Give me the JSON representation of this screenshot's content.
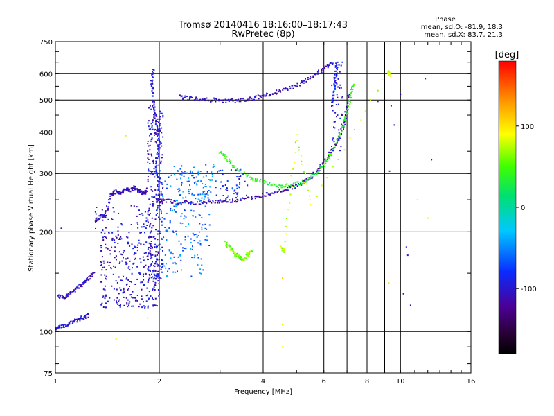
{
  "chart_data": {
    "type": "scatter",
    "title": "Tromsø 20140416 18:16:00–18:17:43",
    "subtitle": "RwPretec (8p)",
    "xlabel": "Frequency [MHz]",
    "ylabel": "Stationary phase Virtual Height [km]",
    "x_scale": "log",
    "y_scale": "log",
    "xlim": [
      1,
      16
    ],
    "ylim": [
      75,
      750
    ],
    "x_ticks": [
      1,
      2,
      4,
      6,
      8,
      10,
      16
    ],
    "x_gridlines": [
      2,
      4,
      6,
      7,
      8,
      9,
      10
    ],
    "y_ticks": [
      75,
      100,
      200,
      300,
      400,
      500,
      600,
      750
    ],
    "y_gridlines": [
      100,
      200,
      300,
      400,
      500,
      600
    ],
    "grid": true,
    "phase_info": {
      "heading": "Phase",
      "line_o": "mean, sd,O: -81.9, 18.3",
      "line_x": "mean, sd,X: 83.7, 21.3"
    },
    "colorbar": {
      "label": "[deg]",
      "range": [
        -180,
        180
      ],
      "ticks": [
        100,
        0,
        -100
      ],
      "scheme": "rainbow: black/purple (low) → blue → cyan → green → yellow → orange → red (high)"
    },
    "traces": [
      {
        "name": "",
        "color_deg": -100,
        "points": [
          [
            1.0,
            102
          ],
          [
            1.05,
            104
          ],
          [
            1.1,
            106
          ],
          [
            1.15,
            108
          ],
          [
            1.2,
            110
          ],
          [
            1.25,
            112
          ]
        ]
      },
      {
        "name": "",
        "color_deg": -105,
        "points": [
          [
            1.02,
            128
          ],
          [
            1.06,
            126
          ],
          [
            1.1,
            130
          ],
          [
            1.15,
            134
          ],
          [
            1.2,
            140
          ],
          [
            1.25,
            145
          ],
          [
            1.3,
            150
          ]
        ]
      },
      {
        "name": "",
        "color_deg": -110,
        "points": [
          [
            1.3,
            215
          ],
          [
            1.35,
            222
          ],
          [
            1.4,
            226
          ],
          [
            1.45,
            260
          ],
          [
            1.5,
            265
          ],
          [
            1.55,
            262
          ],
          [
            1.6,
            270
          ],
          [
            1.65,
            268
          ],
          [
            1.7,
            272
          ],
          [
            1.75,
            266
          ],
          [
            1.8,
            262
          ],
          [
            1.85,
            268
          ]
        ]
      },
      {
        "name": "",
        "color_deg": -115,
        "points": [
          [
            1.95,
            250
          ],
          [
            2.1,
            248
          ],
          [
            2.3,
            246
          ],
          [
            2.6,
            245
          ],
          [
            2.9,
            246
          ],
          [
            3.1,
            247
          ],
          [
            3.4,
            250
          ],
          [
            3.8,
            255
          ],
          [
            4.2,
            262
          ],
          [
            4.6,
            268
          ],
          [
            5.0,
            276
          ],
          [
            5.4,
            288
          ],
          [
            5.8,
            310
          ],
          [
            6.2,
            340
          ],
          [
            6.6,
            380
          ],
          [
            6.85,
            420
          ],
          [
            7.0,
            470
          ],
          [
            7.1,
            520
          ]
        ]
      },
      {
        "name": "",
        "color_deg": 40,
        "points": [
          [
            3.0,
            350
          ],
          [
            3.2,
            325
          ],
          [
            3.4,
            305
          ],
          [
            3.7,
            290
          ],
          [
            4.0,
            282
          ],
          [
            4.4,
            276
          ],
          [
            4.8,
            275
          ],
          [
            5.2,
            282
          ],
          [
            5.6,
            295
          ],
          [
            6.0,
            318
          ],
          [
            6.4,
            355
          ],
          [
            6.8,
            410
          ],
          [
            7.0,
            460
          ],
          [
            7.2,
            520
          ],
          [
            7.3,
            560
          ]
        ]
      },
      {
        "name": "",
        "color_deg": -110,
        "points": [
          [
            2.3,
            510
          ],
          [
            2.5,
            505
          ],
          [
            2.8,
            500
          ],
          [
            3.1,
            497
          ],
          [
            3.4,
            498
          ],
          [
            3.7,
            505
          ],
          [
            4.0,
            515
          ],
          [
            4.4,
            528
          ],
          [
            4.8,
            545
          ],
          [
            5.2,
            565
          ],
          [
            5.6,
            590
          ],
          [
            6.0,
            620
          ],
          [
            6.4,
            650
          ]
        ]
      },
      {
        "name": "",
        "color_deg": -95,
        "points": [
          [
            1.92,
            620
          ],
          [
            1.9,
            560
          ],
          [
            1.92,
            500
          ],
          [
            1.95,
            450
          ],
          [
            1.98,
            400
          ],
          [
            2.0,
            360
          ],
          [
            1.95,
            320
          ],
          [
            1.98,
            290
          ],
          [
            2.0,
            260
          ],
          [
            1.96,
            230
          ]
        ]
      },
      {
        "name": "",
        "color_deg": -90,
        "points": [
          [
            6.55,
            650
          ],
          [
            6.5,
            600
          ],
          [
            6.45,
            560
          ],
          [
            6.4,
            520
          ],
          [
            6.35,
            480
          ]
        ]
      },
      {
        "name": "",
        "color_deg": 60,
        "points": [
          [
            3.1,
            185
          ],
          [
            3.2,
            180
          ],
          [
            3.3,
            172
          ],
          [
            3.4,
            168
          ],
          [
            3.5,
            165
          ],
          [
            3.6,
            170
          ],
          [
            3.7,
            175
          ]
        ]
      },
      {
        "name": "",
        "color_deg": 80,
        "points": [
          [
            4.5,
            180
          ],
          [
            4.6,
            175
          ],
          [
            5.0,
            390
          ],
          [
            5.5,
            240
          ],
          [
            9.2,
            610
          ],
          [
            9.3,
            590
          ]
        ]
      }
    ],
    "clusters": [
      {
        "name": "",
        "color_deg": -105,
        "x": [
          1.35,
          2.0
        ],
        "y": [
          118,
          200
        ],
        "n": 300
      },
      {
        "name": "",
        "color_deg": -100,
        "x": [
          1.85,
          2.05
        ],
        "y": [
          140,
          480
        ],
        "n": 260
      },
      {
        "name": "",
        "color_deg": -60,
        "x": [
          2.0,
          2.8
        ],
        "y": [
          145,
          320
        ],
        "n": 200
      },
      {
        "name": "",
        "color_deg": -45,
        "x": [
          2.3,
          2.9
        ],
        "y": [
          250,
          320
        ],
        "n": 60
      },
      {
        "name": "",
        "color_deg": -85,
        "x": [
          2.9,
          3.6
        ],
        "y": [
          250,
          310
        ],
        "n": 50
      },
      {
        "name": "",
        "color_deg": -95,
        "x": [
          6.3,
          6.8
        ],
        "y": [
          350,
          650
        ],
        "n": 50
      },
      {
        "name": "",
        "color_deg": -100,
        "x": [
          1.3,
          1.9
        ],
        "y": [
          200,
          240
        ],
        "n": 40
      }
    ],
    "sparse_points": [
      {
        "name": "",
        "color_deg": -100,
        "points": [
          [
            11.8,
            580
          ],
          [
            10.5,
            170
          ],
          [
            10.2,
            130
          ],
          [
            8.6,
            495
          ],
          [
            9.4,
            480
          ],
          [
            9.6,
            420
          ],
          [
            9.3,
            305
          ],
          [
            10.0,
            520
          ],
          [
            10.4,
            180
          ],
          [
            12.3,
            330
          ],
          [
            10.7,
            120
          ],
          [
            1.04,
            205
          ]
        ]
      },
      {
        "name": "",
        "color_deg": 90,
        "points": [
          [
            4.55,
            145
          ],
          [
            4.55,
            105
          ],
          [
            4.55,
            90
          ],
          [
            9.2,
            200
          ],
          [
            9.25,
            140
          ],
          [
            11.2,
            250
          ],
          [
            12.0,
            220
          ],
          [
            1.5,
            95
          ],
          [
            1.85,
            110
          ],
          [
            1.6,
            390
          ]
        ]
      }
    ]
  }
}
